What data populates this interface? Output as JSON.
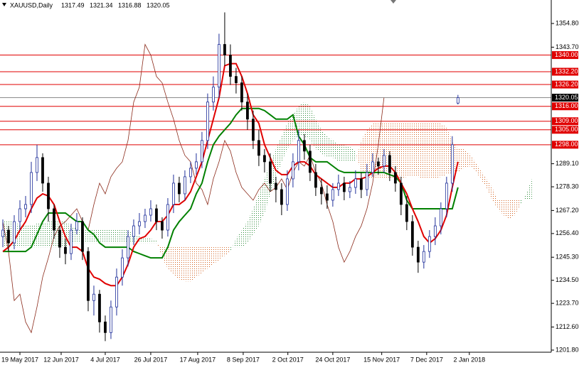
{
  "chart_data": {
    "type": "candlestick",
    "title": "XAUUSD,Daily",
    "xlim": [
      -0.5,
      96.4
    ],
    "ylim": [
      1201.8,
      1365.8
    ],
    "grid": false,
    "up_color": "#1f2f9a",
    "down_color": "#000000",
    "xticks": [
      {
        "value": 3,
        "label": "19 May 2017"
      },
      {
        "value": 10.25,
        "label": "12 Jun 2017"
      },
      {
        "value": 18,
        "label": "4 Jul 2017"
      },
      {
        "value": 26,
        "label": "26 Jul 2017"
      },
      {
        "value": 34.25,
        "label": "17 Aug 2017"
      },
      {
        "value": 42.25,
        "label": "8 Sep 2017"
      },
      {
        "value": 50.1,
        "label": "2 Oct 2017"
      },
      {
        "value": 58,
        "label": "24 Oct 2017"
      },
      {
        "value": 66.6,
        "label": "15 Nov 2017"
      },
      {
        "value": 74.5,
        "label": "7 Dec 2017"
      },
      {
        "value": 82,
        "label": "2 Jan 2018"
      }
    ],
    "yticks": [
      {
        "value": 1354.8,
        "label": "1354.80"
      },
      {
        "value": 1343.7,
        "label": "1343.70"
      },
      {
        "value": 1289.1,
        "label": "1289.10"
      },
      {
        "value": 1278.3,
        "label": "1278.30"
      },
      {
        "value": 1267.2,
        "label": "1267.20"
      },
      {
        "value": 1256.4,
        "label": "1256.40"
      },
      {
        "value": 1245.3,
        "label": "1245.30"
      },
      {
        "value": 1234.5,
        "label": "1234.50"
      },
      {
        "value": 1223.7,
        "label": "1223.70"
      },
      {
        "value": 1212.6,
        "label": "1212.60"
      },
      {
        "value": 1201.8,
        "label": "1201.80"
      }
    ],
    "levels": [
      {
        "value": 1340,
        "label": "1340.00"
      },
      {
        "value": 1332.2,
        "label": "1332.20"
      },
      {
        "value": 1326.2,
        "label": "1326.20"
      },
      {
        "value": 1316,
        "label": "1316.00"
      },
      {
        "value": 1309,
        "label": "1309.00"
      },
      {
        "value": 1305,
        "label": "1305.00"
      },
      {
        "value": 1298,
        "label": "1298.00"
      }
    ],
    "level_color": "#e00000",
    "current_price": {
      "value": 1320.05,
      "label": "1320.05",
      "color": "#8c8c8c"
    },
    "open": [
      1255,
      1258,
      1252,
      1262,
      1268,
      1270,
      1285,
      1292,
      1280,
      1268,
      1258,
      1250,
      1247,
      1258,
      1262,
      1248,
      1225,
      1228,
      1215,
      1210,
      1222,
      1236,
      1245,
      1255,
      1260,
      1262,
      1265,
      1268,
      1262,
      1258,
      1270,
      1280,
      1275,
      1283,
      1287,
      1290,
      1300,
      1318,
      1325,
      1345,
      1340,
      1330,
      1327,
      1318,
      1310,
      1300,
      1293,
      1290,
      1280,
      1277,
      1270,
      1282,
      1290,
      1300,
      1295,
      1285,
      1278,
      1275,
      1272,
      1277,
      1280,
      1276,
      1278,
      1282,
      1277,
      1285,
      1290,
      1288,
      1293,
      1285,
      1280,
      1270,
      1262,
      1250,
      1243,
      1248,
      1255,
      1260,
      1268,
      1280,
      1317.49,
      null,
      null,
      null,
      null,
      null,
      null,
      null,
      null,
      null,
      null,
      null,
      null,
      null
    ],
    "high": [
      1263,
      1260,
      1265,
      1272,
      1274,
      1290,
      1298,
      1294,
      1283,
      1270,
      1260,
      1254,
      1261,
      1266,
      1264,
      1250,
      1232,
      1230,
      1218,
      1225,
      1240,
      1249,
      1258,
      1263,
      1266,
      1268,
      1272,
      1270,
      1264,
      1273,
      1284,
      1283,
      1286,
      1290,
      1294,
      1304,
      1322,
      1330,
      1350,
      1360,
      1345,
      1334,
      1330,
      1322,
      1314,
      1305,
      1296,
      1294,
      1283,
      1280,
      1286,
      1294,
      1305,
      1303,
      1298,
      1289,
      1282,
      1279,
      1280,
      1284,
      1283,
      1281,
      1286,
      1285,
      1289,
      1294,
      1292,
      1296,
      1295,
      1288,
      1283,
      1274,
      1265,
      1253,
      1251,
      1258,
      1264,
      1271,
      1283,
      1302,
      1321.34,
      null,
      null,
      null,
      null,
      null,
      null,
      null,
      null,
      null,
      null,
      null,
      null,
      null
    ],
    "low": [
      1250,
      1248,
      1249,
      1258,
      1264,
      1266,
      1281,
      1276,
      1262,
      1254,
      1245,
      1242,
      1244,
      1256,
      1244,
      1220,
      1218,
      1210,
      1206,
      1207,
      1218,
      1232,
      1241,
      1251,
      1256,
      1259,
      1262,
      1258,
      1254,
      1255,
      1266,
      1271,
      1272,
      1280,
      1284,
      1287,
      1296,
      1314,
      1320,
      1335,
      1326,
      1322,
      1314,
      1305,
      1296,
      1288,
      1285,
      1276,
      1271,
      1265,
      1267,
      1278,
      1286,
      1291,
      1281,
      1274,
      1270,
      1268,
      1269,
      1274,
      1272,
      1273,
      1275,
      1273,
      1274,
      1283,
      1284,
      1285,
      1281,
      1276,
      1265,
      1258,
      1246,
      1238,
      1240,
      1245,
      1251,
      1256,
      1264,
      1276,
      1316.88,
      null,
      null,
      null,
      null,
      null,
      null,
      null,
      null,
      null,
      null,
      null,
      null,
      null
    ],
    "close": [
      1258,
      1252,
      1262,
      1268,
      1270,
      1285,
      1292,
      1280,
      1268,
      1258,
      1250,
      1247,
      1258,
      1262,
      1248,
      1225,
      1228,
      1215,
      1210,
      1222,
      1236,
      1245,
      1255,
      1260,
      1262,
      1265,
      1268,
      1262,
      1258,
      1270,
      1280,
      1275,
      1283,
      1287,
      1290,
      1300,
      1318,
      1325,
      1345,
      1340,
      1330,
      1327,
      1318,
      1310,
      1300,
      1293,
      1290,
      1280,
      1277,
      1270,
      1282,
      1290,
      1300,
      1295,
      1285,
      1278,
      1275,
      1272,
      1277,
      1280,
      1276,
      1278,
      1282,
      1277,
      1285,
      1290,
      1288,
      1293,
      1285,
      1280,
      1270,
      1262,
      1250,
      1243,
      1248,
      1255,
      1260,
      1268,
      1280,
      1298,
      1320.05,
      null,
      null,
      null,
      null,
      null,
      null,
      null,
      null,
      null,
      null,
      null,
      null,
      null
    ],
    "cloud": {
      "up_color": "#2e8b3a",
      "down_color": "#d2601e",
      "span_a": [
        1262,
        1262,
        1262,
        1260,
        1260,
        1260,
        1261,
        1261,
        1262,
        1262,
        1262,
        1262,
        1260,
        1259,
        1258,
        1258,
        1258,
        1258,
        1258,
        1258,
        1258,
        1258,
        1258,
        1256,
        1255,
        1254,
        1254,
        1253,
        1245,
        1240,
        1237,
        1235,
        1234,
        1234,
        1236,
        1238,
        1240,
        1242,
        1244,
        1246,
        1248,
        1254,
        1258,
        1262,
        1268,
        1275,
        1282,
        1290,
        1296,
        1302,
        1308,
        1312,
        1316,
        1318,
        1316,
        1310,
        1305,
        1302,
        1300,
        1298,
        1298,
        1297,
        1295,
        1285,
        1283,
        1282,
        1282,
        1282,
        1282,
        1282,
        1282,
        1283,
        1283,
        1283,
        1282,
        1282,
        1282,
        1283,
        1284,
        1285,
        1285,
        1287,
        1288,
        1286,
        1282,
        1278,
        1272,
        1268,
        1265,
        1263,
        1265,
        1270,
        1275,
        1282
      ],
      "span_b": [
        1250,
        1250,
        1250,
        1250,
        1250,
        1250,
        1250,
        1250,
        1250,
        1250,
        1250,
        1250,
        1252,
        1252,
        1252,
        1252,
        1252,
        1252,
        1252,
        1252,
        1252,
        1252,
        1252,
        1252,
        1252,
        1252,
        1252,
        1252,
        1250,
        1250,
        1250,
        1250,
        1250,
        1250,
        1250,
        1250,
        1250,
        1250,
        1250,
        1250,
        1250,
        1250,
        1250,
        1252,
        1256,
        1260,
        1266,
        1275,
        1282,
        1290,
        1296,
        1300,
        1302,
        1302,
        1300,
        1296,
        1294,
        1292,
        1292,
        1290,
        1290,
        1290,
        1290,
        1300,
        1305,
        1308,
        1308,
        1308,
        1308,
        1308,
        1308,
        1308,
        1308,
        1308,
        1308,
        1308,
        1308,
        1308,
        1306,
        1300,
        1296,
        1296,
        1294,
        1290,
        1286,
        1282,
        1278,
        1272,
        1272,
        1272,
        1272,
        1272,
        1272,
        1272
      ]
    },
    "lines": [
      {
        "color": "#8b2a1a",
        "width": 0.8,
        "values": [
          1262,
          1248,
          1225,
          1228,
          1215,
          1210,
          1222,
          1236,
          1245,
          1255,
          1260,
          1262,
          1265,
          1268,
          1262,
          1258,
          1270,
          1280,
          1275,
          1283,
          1287,
          1290,
          1300,
          1318,
          1325,
          1345,
          1340,
          1330,
          1327,
          1318,
          1310,
          1300,
          1293,
          1290,
          1280,
          1277,
          1270,
          1282,
          1290,
          1300,
          1295,
          1285,
          1278,
          1275,
          1272,
          1277,
          1280,
          1276,
          1278,
          1282,
          1277,
          1285,
          1290,
          1288,
          1293,
          1285,
          1280,
          1270,
          1262,
          1250,
          1243,
          1248,
          1255,
          1260,
          1268,
          1280,
          1298,
          1320.05,
          null,
          null,
          null,
          null,
          null,
          null,
          null,
          null,
          null,
          null,
          null,
          null,
          null,
          null,
          null,
          null,
          null,
          null,
          null,
          null,
          null,
          null,
          null,
          null,
          null,
          null
        ]
      },
      {
        "color": "#008000",
        "width": 2,
        "values": [
          1248,
          1248,
          1248,
          1248,
          1248,
          1250,
          1256,
          1262,
          1266,
          1266,
          1266,
          1266,
          1264,
          1262,
          1262,
          1258,
          1256,
          1252,
          1250,
          1250,
          1250,
          1250,
          1250,
          1248,
          1247,
          1246,
          1245,
          1245,
          1245,
          1250,
          1258,
          1262,
          1265,
          1268,
          1275,
          1280,
          1290,
          1298,
          1302,
          1305,
          1308,
          1312,
          1315,
          1315,
          1315,
          1315,
          1314,
          1312,
          1310,
          1310,
          1310,
          1312,
          1302,
          1298,
          1292,
          1290,
          1290,
          1290,
          1288,
          1286,
          1285,
          1285,
          1285,
          1285,
          1285,
          1285,
          1285,
          1285,
          1284,
          1283,
          1280,
          1272,
          1268,
          1268,
          1268,
          1268,
          1268,
          1268,
          1268,
          1268,
          1278,
          null,
          null,
          null,
          null,
          null,
          null,
          null,
          null,
          null,
          null,
          null,
          null,
          null
        ]
      },
      {
        "color": "#e00000",
        "width": 2,
        "values": [
          1248,
          1250,
          1253,
          1258,
          1262,
          1268,
          1273,
          1275,
          1274,
          1270,
          1262,
          1255,
          1250,
          1250,
          1248,
          1240,
          1236,
          1235,
          1233,
          1232,
          1232,
          1236,
          1242,
          1250,
          1254,
          1255,
          1258,
          1262,
          1262,
          1265,
          1270,
          1270,
          1272,
          1276,
          1283,
          1290,
          1300,
          1310,
          1320,
          1335,
          1336,
          1336,
          1330,
          1322,
          1312,
          1308,
          1298,
          1292,
          1286,
          1284,
          1284,
          1288,
          1290,
          1290,
          1288,
          1284,
          1282,
          1280,
          1278,
          1278,
          1280,
          1280,
          1282,
          1282,
          1283,
          1285,
          1287,
          1288,
          1288,
          1285,
          1280,
          1275,
          1268,
          1262,
          1255,
          1252,
          1254,
          1258,
          1265,
          1278,
          1290,
          null,
          null,
          null,
          null,
          null,
          null,
          null,
          null,
          null,
          null,
          null,
          null,
          null
        ]
      }
    ]
  }
}
